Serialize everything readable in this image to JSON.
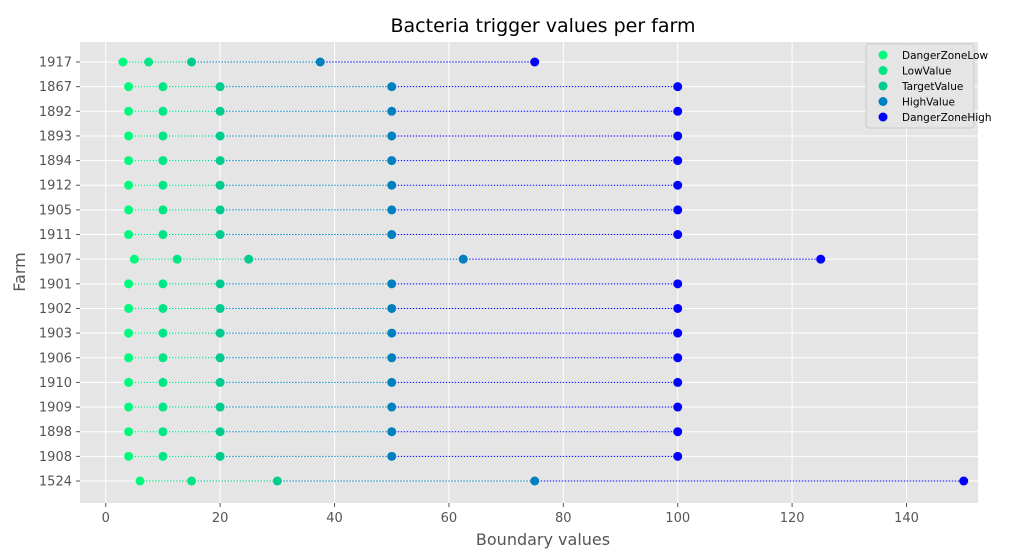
{
  "chart_data": {
    "type": "scatter",
    "title": "Bacteria trigger values per farm",
    "xlabel": "Boundary values",
    "ylabel": "Farm",
    "xlim": [
      -4.5,
      152.5
    ],
    "xticks": [
      0,
      20,
      40,
      60,
      80,
      100,
      120,
      140
    ],
    "grid": true,
    "legend_position": "top-right",
    "categories": [
      "1917",
      "1867",
      "1892",
      "1893",
      "1894",
      "1912",
      "1905",
      "1911",
      "1907",
      "1901",
      "1902",
      "1903",
      "1906",
      "1910",
      "1909",
      "1898",
      "1908",
      "1524"
    ],
    "series": [
      {
        "name": "DangerZoneLow",
        "color": "#00fa7d",
        "values": [
          3,
          4,
          4,
          4,
          4,
          4,
          4,
          4,
          5,
          4,
          4,
          4,
          4,
          4,
          4,
          4,
          4,
          6
        ]
      },
      {
        "name": "LowValue",
        "color": "#00e585",
        "values": [
          7.5,
          10,
          10,
          10,
          10,
          10,
          10,
          10,
          12.5,
          10,
          10,
          10,
          10,
          10,
          10,
          10,
          10,
          15
        ]
      },
      {
        "name": "TargetValue",
        "color": "#00cc8f",
        "values": [
          15,
          20,
          20,
          20,
          20,
          20,
          20,
          20,
          25,
          20,
          20,
          20,
          20,
          20,
          20,
          20,
          20,
          30
        ]
      },
      {
        "name": "HighValue",
        "color": "#0080bf",
        "values": [
          37.5,
          50,
          50,
          50,
          50,
          50,
          50,
          50,
          62.5,
          50,
          50,
          50,
          50,
          50,
          50,
          50,
          50,
          75
        ]
      },
      {
        "name": "DangerZoneHigh",
        "color": "#0000ff",
        "values": [
          75,
          100,
          100,
          100,
          100,
          100,
          100,
          100,
          125,
          100,
          100,
          100,
          100,
          100,
          100,
          100,
          100,
          150
        ]
      }
    ]
  }
}
